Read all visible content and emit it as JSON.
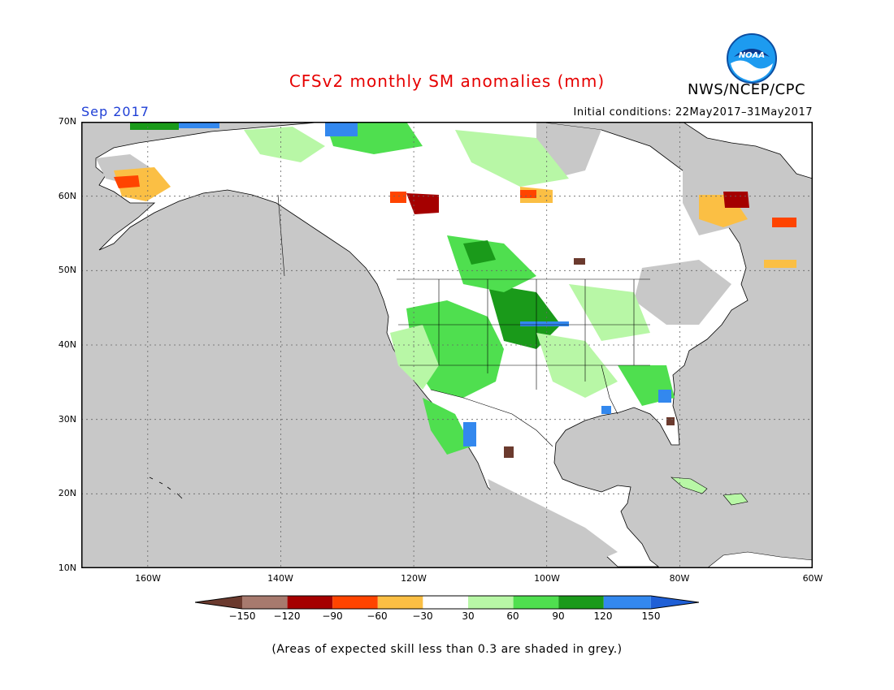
{
  "header": {
    "title": "CFSv2 monthly SM anomalies (mm)",
    "org": "NWS/NCEP/CPC",
    "logo_text": "NOAA",
    "month": "Sep 2017",
    "initial_conditions": "Initial conditions: 22May2017–31May2017"
  },
  "axes": {
    "lat_labels": [
      "70N",
      "60N",
      "50N",
      "40N",
      "30N",
      "20N",
      "10N"
    ],
    "lon_labels": [
      "160W",
      "140W",
      "120W",
      "100W",
      "80W",
      "60W"
    ]
  },
  "colorbar": {
    "tick_labels": [
      "−150",
      "−120",
      "−90",
      "−60",
      "−30",
      "30",
      "60",
      "90",
      "120",
      "150"
    ],
    "colors": [
      "#6b3a2e",
      "#a77a6e",
      "#a50000",
      "#ff4400",
      "#fbbf44",
      "#ffffff",
      "#b8f7a6",
      "#4fdf4f",
      "#1a9a1a",
      "#3388ee",
      "#1f5fd6"
    ]
  },
  "map": {
    "land_color": "#ffffff",
    "ocean_color": "#c8c8c8",
    "border_color": "#000000"
  },
  "footnote": "(Areas of expected skill less than 0.3 are shaded in grey.)"
}
